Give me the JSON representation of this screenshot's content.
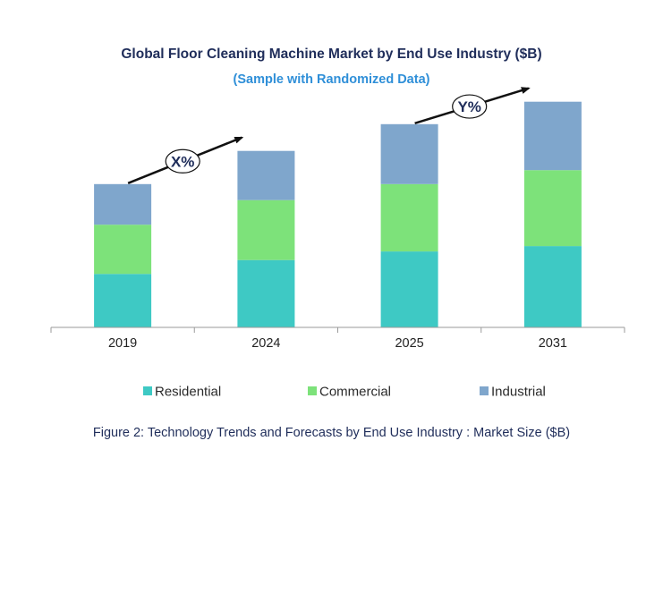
{
  "chart_data": {
    "type": "bar",
    "stacked": true,
    "title": "Global Floor Cleaning Machine Market by End Use Industry ($B)",
    "subtitle": "(Sample with Randomized Data)",
    "categories": [
      "2019",
      "2024",
      "2025",
      "2031"
    ],
    "series": [
      {
        "name": "Residential",
        "color": "#3ec9c4",
        "values": [
          50,
          63,
          71,
          76
        ]
      },
      {
        "name": "Commercial",
        "color": "#7de27a",
        "values": [
          46,
          56,
          63,
          71
        ]
      },
      {
        "name": "Industrial",
        "color": "#7fa6cc",
        "values": [
          38,
          46,
          56,
          64
        ]
      }
    ],
    "ylim": [
      0,
      230
    ],
    "grid": false,
    "legend_position": "bottom",
    "annotations": [
      {
        "label": "X%",
        "from_category": "2019",
        "to_category": "2024"
      },
      {
        "label": "Y%",
        "from_category": "2025",
        "to_category": "2031"
      }
    ]
  },
  "caption": "Figure 2: Technology  Trends  and Forecasts by End Use Industry  : Market Size ($B)"
}
